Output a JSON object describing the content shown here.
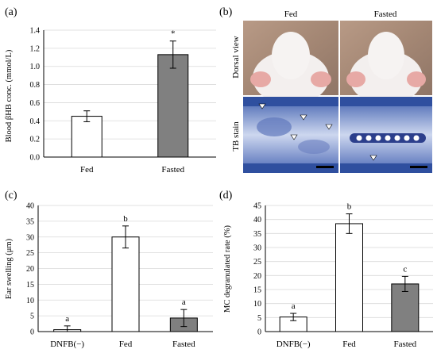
{
  "panel_b": {
    "label": "(b)",
    "col_labels": [
      "Fed",
      "Fasted"
    ],
    "row_labels": [
      "Dorsal view",
      "TB stain"
    ]
  },
  "chart_data": [
    {
      "panel": "(a)",
      "type": "bar",
      "categories": [
        "Fed",
        "Fasted"
      ],
      "values": [
        0.45,
        1.13
      ],
      "errors": [
        0.06,
        0.15
      ],
      "colors": [
        "#ffffff",
        "#808080"
      ],
      "significance": [
        "",
        "*"
      ],
      "ylabel": "Blood βHB conc. (mmol/L)",
      "ylim": [
        0,
        1.4
      ],
      "yticks": [
        "0.0",
        "0.2",
        "0.4",
        "0.6",
        "0.8",
        "1.0",
        "1.2",
        "1.4"
      ],
      "grid": true
    },
    {
      "panel": "(c)",
      "type": "bar",
      "categories": [
        "DNFB(−)",
        "Fed",
        "Fasted"
      ],
      "values": [
        0.6,
        30,
        4.3
      ],
      "errors": [
        1.2,
        3.5,
        2.7
      ],
      "colors": [
        "#ffffff",
        "#ffffff",
        "#808080"
      ],
      "significance": [
        "a",
        "b",
        "a"
      ],
      "ylabel": "Ear swelling (μm)",
      "ylim": [
        0,
        40
      ],
      "yticks": [
        "0",
        "5",
        "10",
        "15",
        "20",
        "25",
        "30",
        "35",
        "40"
      ],
      "grid": true
    },
    {
      "panel": "(d)",
      "type": "bar",
      "categories": [
        "DNFB(−)",
        "Fed",
        "Fasted"
      ],
      "values": [
        5.2,
        38.5,
        17
      ],
      "errors": [
        1.3,
        3.5,
        2.7
      ],
      "colors": [
        "#ffffff",
        "#ffffff",
        "#808080"
      ],
      "significance": [
        "a",
        "b",
        "c"
      ],
      "ylabel": "MC degranulated rate (%)",
      "ylim": [
        0,
        45
      ],
      "yticks": [
        "0",
        "5",
        "10",
        "15",
        "20",
        "25",
        "30",
        "35",
        "40",
        "45"
      ],
      "grid": true
    }
  ]
}
